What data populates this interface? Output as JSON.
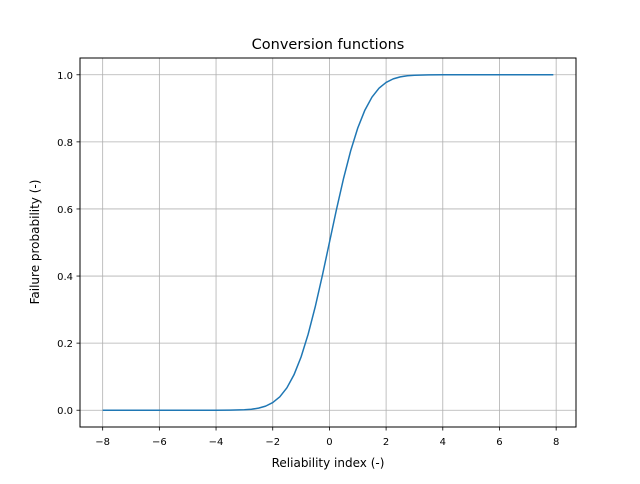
{
  "chart_data": {
    "type": "line",
    "title": "Conversion functions",
    "xlabel": "Reliability index (-)",
    "ylabel": "Failure probability (-)",
    "xlim": [
      -8.8,
      8.7
    ],
    "ylim": [
      -0.05,
      1.05
    ],
    "grid": true,
    "xticks": [
      -8,
      -6,
      -4,
      -2,
      0,
      2,
      4,
      6,
      8
    ],
    "xtick_labels": [
      "−8",
      "−6",
      "−4",
      "−2",
      "0",
      "2",
      "4",
      "6",
      "8"
    ],
    "yticks": [
      0.0,
      0.2,
      0.4,
      0.6,
      0.8,
      1.0
    ],
    "ytick_labels": [
      "0.0",
      "0.2",
      "0.4",
      "0.6",
      "0.8",
      "1.0"
    ],
    "series": [
      {
        "color": "#1f77b4",
        "x": [
          -8,
          -6,
          -5,
          -4,
          -3.5,
          -3,
          -2.75,
          -2.5,
          -2.25,
          -2,
          -1.75,
          -1.5,
          -1.25,
          -1,
          -0.75,
          -0.5,
          -0.25,
          0,
          0.25,
          0.5,
          0.75,
          1,
          1.25,
          1.5,
          1.75,
          2,
          2.25,
          2.5,
          2.75,
          3,
          3.5,
          4,
          5,
          6,
          7,
          7.9
        ],
        "y": [
          0,
          0,
          3e-07,
          3e-05,
          0.00023,
          0.00135,
          0.00298,
          0.00621,
          0.01222,
          0.02275,
          0.04006,
          0.06681,
          0.10565,
          0.15866,
          0.22663,
          0.30854,
          0.40129,
          0.5,
          0.59871,
          0.69146,
          0.77337,
          0.84134,
          0.89435,
          0.93319,
          0.95994,
          0.97725,
          0.98778,
          0.99379,
          0.99702,
          0.99865,
          0.99977,
          0.99997,
          1,
          1,
          1,
          1
        ]
      }
    ]
  }
}
